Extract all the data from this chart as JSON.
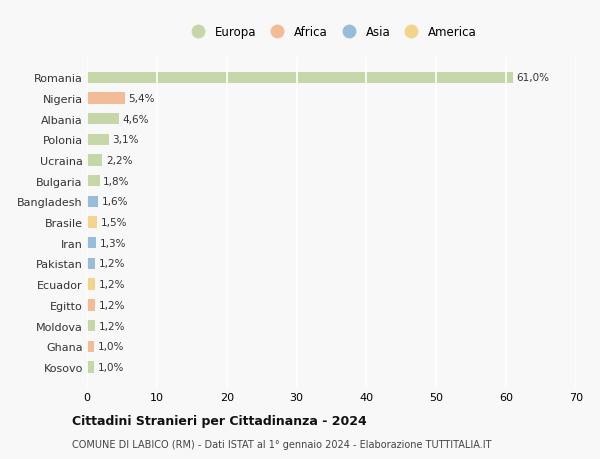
{
  "countries": [
    "Romania",
    "Nigeria",
    "Albania",
    "Polonia",
    "Ucraina",
    "Bulgaria",
    "Bangladesh",
    "Brasile",
    "Iran",
    "Pakistan",
    "Ecuador",
    "Egitto",
    "Moldova",
    "Ghana",
    "Kosovo"
  ],
  "values": [
    61.0,
    5.4,
    4.6,
    3.1,
    2.2,
    1.8,
    1.6,
    1.5,
    1.3,
    1.2,
    1.2,
    1.2,
    1.2,
    1.0,
    1.0
  ],
  "labels": [
    "61,0%",
    "5,4%",
    "4,6%",
    "3,1%",
    "2,2%",
    "1,8%",
    "1,6%",
    "1,5%",
    "1,3%",
    "1,2%",
    "1,2%",
    "1,2%",
    "1,2%",
    "1,0%",
    "1,0%"
  ],
  "continents": [
    "Europa",
    "Africa",
    "Europa",
    "Europa",
    "Europa",
    "Europa",
    "Asia",
    "America",
    "Asia",
    "Asia",
    "America",
    "Africa",
    "Europa",
    "Africa",
    "Europa"
  ],
  "continent_colors": {
    "Europa": "#b5cc8e",
    "Africa": "#f0a875",
    "Asia": "#7aaacf",
    "America": "#f0c86a"
  },
  "legend_order": [
    "Europa",
    "Africa",
    "Asia",
    "America"
  ],
  "title": "Cittadini Stranieri per Cittadinanza - 2024",
  "subtitle": "COMUNE DI LABICO (RM) - Dati ISTAT al 1° gennaio 2024 - Elaborazione TUTTITALIA.IT",
  "xlim": [
    0,
    70
  ],
  "xticks": [
    0,
    10,
    20,
    30,
    40,
    50,
    60,
    70
  ],
  "background_color": "#f8f8f8",
  "grid_color": "#ffffff",
  "bar_height": 0.55
}
